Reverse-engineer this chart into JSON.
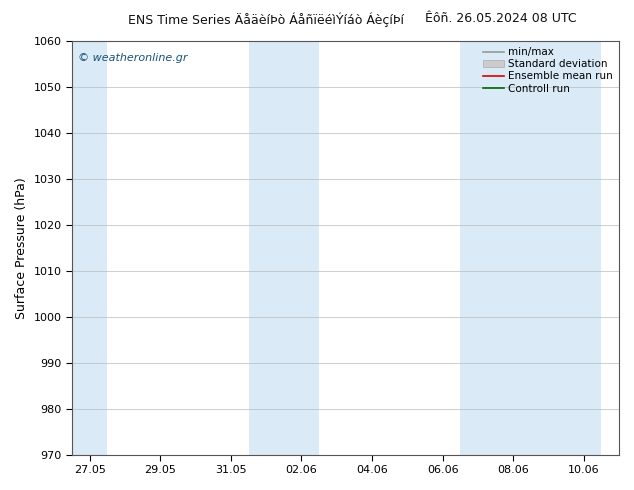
{
  "title_left": "ENS Time Series ÄåäèíÞò ÁåñïëéìÝíáò ÁèçíÞí",
  "title_right": "Êôñ. 26.05.2024 08 UTC",
  "ylabel": "Surface Pressure (hPa)",
  "watermark": "© weatheronline.gr",
  "ylim": [
    970,
    1060
  ],
  "yticks": [
    970,
    980,
    990,
    1000,
    1010,
    1020,
    1030,
    1040,
    1050,
    1060
  ],
  "x_tick_labels": [
    "27.05",
    "29.05",
    "31.05",
    "02.06",
    "04.06",
    "06.06",
    "08.06",
    "10.06"
  ],
  "x_tick_positions": [
    27,
    29,
    31,
    33,
    35,
    37,
    39,
    41
  ],
  "xlim": [
    26.5,
    42
  ],
  "shade_bands": [
    {
      "xmin": 26.5,
      "xmax": 27.5
    },
    {
      "xmin": 31.5,
      "xmax": 33.5
    },
    {
      "xmin": 37.5,
      "xmax": 41.5
    }
  ],
  "shade_color": "#daeaf7",
  "bg_color": "#ffffff",
  "grid_color": "#bbbbbb",
  "legend_items": [
    {
      "label": "min/max",
      "color": "#999999",
      "type": "line"
    },
    {
      "label": "Standard deviation",
      "color": "#cccccc",
      "type": "box"
    },
    {
      "label": "Ensemble mean run",
      "color": "#dd0000",
      "type": "line"
    },
    {
      "label": "Controll run",
      "color": "#006600",
      "type": "line"
    }
  ],
  "title_fontsize": 9,
  "axis_label_fontsize": 9,
  "tick_fontsize": 8,
  "watermark_fontsize": 8,
  "legend_fontsize": 7.5
}
